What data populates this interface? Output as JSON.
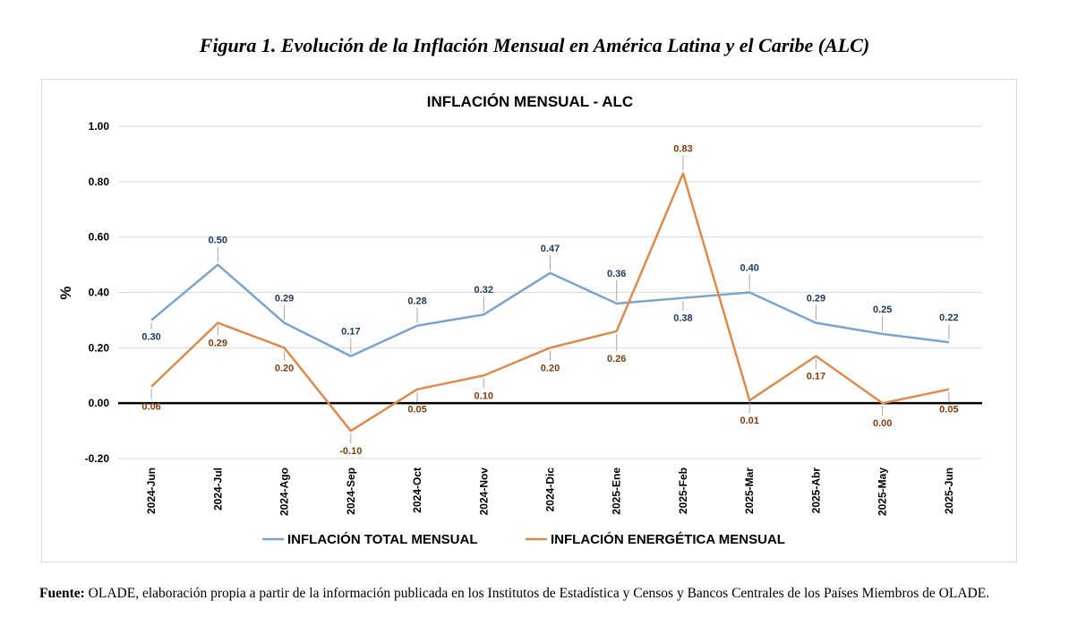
{
  "figure_title": "Figura 1. Evolución de la Inflación Mensual en América Latina y el Caribe (ALC)",
  "source": {
    "label": "Fuente:",
    "text": " OLADE, elaboración propia a partir de la información publicada en los Institutos de Estadística y Censos y Bancos Centrales de los Países Miembros de OLADE."
  },
  "chart_data": {
    "type": "line",
    "title": "INFLACIÓN MENSUAL - ALC",
    "xlabel": "",
    "ylabel": "%",
    "ylim": [
      -0.2,
      1.0
    ],
    "yticks": [
      "1.00",
      "0.80",
      "0.60",
      "0.40",
      "0.20",
      "0.00",
      "-0.20"
    ],
    "grid": true,
    "legend_position": "bottom",
    "categories": [
      "2024-Jun",
      "2024-Jul",
      "2024-Ago",
      "2024-Sep",
      "2024-Oct",
      "2024-Nov",
      "2024-Dic",
      "2025-Ene",
      "2025-Feb",
      "2025-Mar",
      "2025-Abr",
      "2025-May",
      "2025-Jun"
    ],
    "series": [
      {
        "name": "INFLACIÓN TOTAL MENSUAL",
        "color": "#7aa3cd",
        "label_color": "#1f3864",
        "values": [
          0.3,
          0.5,
          0.29,
          0.17,
          0.28,
          0.32,
          0.47,
          0.36,
          0.38,
          0.4,
          0.29,
          0.25,
          0.22
        ],
        "labels": [
          "0.30",
          "0.50",
          "0.29",
          "0.17",
          "0.28",
          "0.32",
          "0.47",
          "0.36",
          "0.38",
          "0.40",
          "0.29",
          "0.25",
          "0.22"
        ]
      },
      {
        "name": "INFLACIÓN ENERGÉTICA MENSUAL",
        "color": "#e08a4a",
        "label_color": "#843c0c",
        "values": [
          0.06,
          0.29,
          0.2,
          -0.1,
          0.05,
          0.1,
          0.2,
          0.26,
          0.83,
          0.01,
          0.17,
          0.0,
          0.05
        ],
        "labels": [
          "0.06",
          "0.29",
          "0.20",
          "-0.10",
          "0.05",
          "0.10",
          "0.20",
          "0.26",
          "0.83",
          "0.01",
          "0.17",
          "0.00",
          "0.05"
        ]
      }
    ]
  }
}
